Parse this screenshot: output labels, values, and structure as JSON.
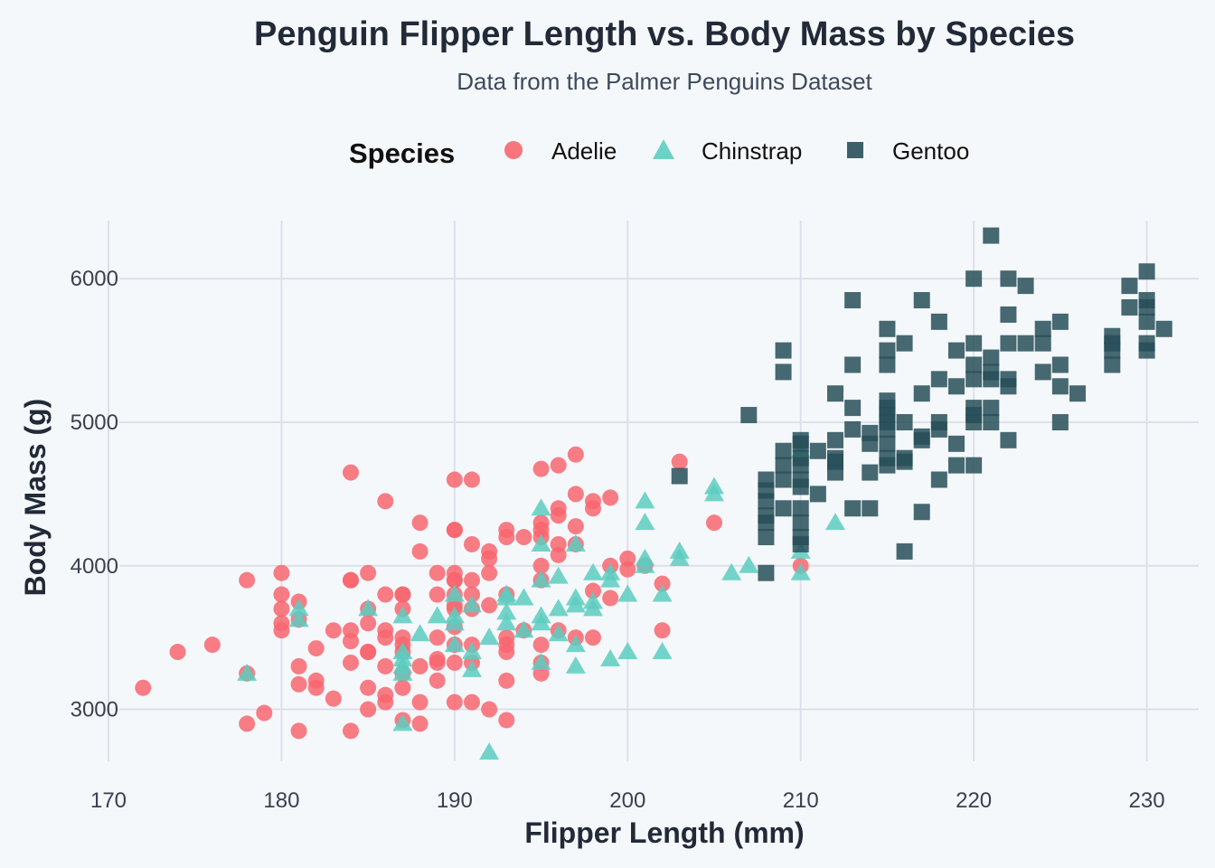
{
  "chart_data": {
    "type": "scatter",
    "title": "Penguin Flipper Length vs. Body Mass by Species",
    "subtitle": "Data from the Palmer Penguins Dataset",
    "xlabel": "Flipper Length (mm)",
    "ylabel": "Body Mass (g)",
    "xlim": [
      170,
      233
    ],
    "ylim": [
      2550,
      6480
    ],
    "xticks": [
      170,
      180,
      190,
      200,
      210,
      220,
      230
    ],
    "yticks": [
      3000,
      4000,
      5000,
      6000
    ],
    "grid": true,
    "legend": {
      "title": "Species",
      "placement": "top"
    },
    "series": [
      {
        "name": "Adelie",
        "marker": "circle",
        "color": "#f8666f",
        "points": [
          [
            172,
            3150
          ],
          [
            174,
            3400
          ],
          [
            176,
            3450
          ],
          [
            178,
            3900
          ],
          [
            178,
            3250
          ],
          [
            178,
            2900
          ],
          [
            179,
            2975
          ],
          [
            180,
            3950
          ],
          [
            180,
            3800
          ],
          [
            180,
            3700
          ],
          [
            180,
            3600
          ],
          [
            180,
            3550
          ],
          [
            181,
            3300
          ],
          [
            181,
            3175
          ],
          [
            181,
            2850
          ],
          [
            181,
            3750
          ],
          [
            181,
            3625
          ],
          [
            182,
            3200
          ],
          [
            182,
            3150
          ],
          [
            182,
            3425
          ],
          [
            183,
            3075
          ],
          [
            183,
            3550
          ],
          [
            184,
            4650
          ],
          [
            184,
            3900
          ],
          [
            184,
            3900
          ],
          [
            184,
            3550
          ],
          [
            184,
            3475
          ],
          [
            184,
            3325
          ],
          [
            184,
            2850
          ],
          [
            185,
            3950
          ],
          [
            185,
            3700
          ],
          [
            185,
            3600
          ],
          [
            185,
            3400
          ],
          [
            185,
            3400
          ],
          [
            185,
            3150
          ],
          [
            185,
            3000
          ],
          [
            186,
            4450
          ],
          [
            186,
            3800
          ],
          [
            186,
            3550
          ],
          [
            186,
            3500
          ],
          [
            186,
            3300
          ],
          [
            186,
            3100
          ],
          [
            186,
            3050
          ],
          [
            187,
            3800
          ],
          [
            187,
            3800
          ],
          [
            187,
            3700
          ],
          [
            187,
            3500
          ],
          [
            187,
            3450
          ],
          [
            187,
            3400
          ],
          [
            187,
            3250
          ],
          [
            187,
            3150
          ],
          [
            187,
            2925
          ],
          [
            188,
            4300
          ],
          [
            188,
            4100
          ],
          [
            188,
            3300
          ],
          [
            188,
            3050
          ],
          [
            188,
            2900
          ],
          [
            189,
            3950
          ],
          [
            189,
            3800
          ],
          [
            189,
            3500
          ],
          [
            189,
            3350
          ],
          [
            189,
            3325
          ],
          [
            189,
            3200
          ],
          [
            190,
            4600
          ],
          [
            190,
            4250
          ],
          [
            190,
            4250
          ],
          [
            190,
            3950
          ],
          [
            190,
            3900
          ],
          [
            190,
            3900
          ],
          [
            190,
            3800
          ],
          [
            190,
            3725
          ],
          [
            190,
            3700
          ],
          [
            190,
            3575
          ],
          [
            190,
            3450
          ],
          [
            190,
            3325
          ],
          [
            190,
            3050
          ],
          [
            191,
            4600
          ],
          [
            191,
            4150
          ],
          [
            191,
            3900
          ],
          [
            191,
            3800
          ],
          [
            191,
            3700
          ],
          [
            191,
            3450
          ],
          [
            191,
            3325
          ],
          [
            191,
            3050
          ],
          [
            192,
            4100
          ],
          [
            192,
            4050
          ],
          [
            192,
            3950
          ],
          [
            192,
            3725
          ],
          [
            192,
            3000
          ],
          [
            193,
            4250
          ],
          [
            193,
            4200
          ],
          [
            193,
            3800
          ],
          [
            193,
            3500
          ],
          [
            193,
            3450
          ],
          [
            193,
            3400
          ],
          [
            193,
            3200
          ],
          [
            193,
            2925
          ],
          [
            194,
            4200
          ],
          [
            194,
            3550
          ],
          [
            195,
            4675
          ],
          [
            195,
            4300
          ],
          [
            195,
            4250
          ],
          [
            195,
            4200
          ],
          [
            195,
            4000
          ],
          [
            195,
            3900
          ],
          [
            195,
            3450
          ],
          [
            195,
            3325
          ],
          [
            195,
            3250
          ],
          [
            196,
            4700
          ],
          [
            196,
            4400
          ],
          [
            196,
            4350
          ],
          [
            196,
            4150
          ],
          [
            196,
            4075
          ],
          [
            196,
            3550
          ],
          [
            197,
            4775
          ],
          [
            197,
            4500
          ],
          [
            197,
            4275
          ],
          [
            197,
            4150
          ],
          [
            197,
            3500
          ],
          [
            198,
            4450
          ],
          [
            198,
            4400
          ],
          [
            198,
            3825
          ],
          [
            198,
            3500
          ],
          [
            199,
            4475
          ],
          [
            199,
            4000
          ],
          [
            199,
            3775
          ],
          [
            200,
            4050
          ],
          [
            200,
            3975
          ],
          [
            201,
            4000
          ],
          [
            202,
            3875
          ],
          [
            202,
            3550
          ],
          [
            203,
            4725
          ],
          [
            205,
            4300
          ],
          [
            210,
            4000
          ]
        ]
      },
      {
        "name": "Chinstrap",
        "marker": "triangle",
        "color": "#5ccdc0",
        "points": [
          [
            178,
            3250
          ],
          [
            181,
            3700
          ],
          [
            181,
            3625
          ],
          [
            185,
            3700
          ],
          [
            187,
            3650
          ],
          [
            187,
            3400
          ],
          [
            187,
            3350
          ],
          [
            187,
            3300
          ],
          [
            187,
            3250
          ],
          [
            187,
            2900
          ],
          [
            188,
            3525
          ],
          [
            189,
            3650
          ],
          [
            190,
            3800
          ],
          [
            190,
            3650
          ],
          [
            190,
            3600
          ],
          [
            190,
            3450
          ],
          [
            191,
            3725
          ],
          [
            191,
            3400
          ],
          [
            191,
            3275
          ],
          [
            192,
            3500
          ],
          [
            192,
            2700
          ],
          [
            193,
            3800
          ],
          [
            193,
            3775
          ],
          [
            193,
            3675
          ],
          [
            193,
            3600
          ],
          [
            194,
            3775
          ],
          [
            194,
            3550
          ],
          [
            195,
            4400
          ],
          [
            195,
            4150
          ],
          [
            195,
            3900
          ],
          [
            195,
            3650
          ],
          [
            195,
            3600
          ],
          [
            195,
            3325
          ],
          [
            196,
            3925
          ],
          [
            196,
            3700
          ],
          [
            196,
            3525
          ],
          [
            197,
            4150
          ],
          [
            197,
            3775
          ],
          [
            197,
            3725
          ],
          [
            197,
            3450
          ],
          [
            197,
            3300
          ],
          [
            198,
            3950
          ],
          [
            198,
            3750
          ],
          [
            198,
            3700
          ],
          [
            199,
            3950
          ],
          [
            199,
            3900
          ],
          [
            199,
            3350
          ],
          [
            200,
            3800
          ],
          [
            200,
            3400
          ],
          [
            201,
            4450
          ],
          [
            201,
            4300
          ],
          [
            201,
            4050
          ],
          [
            201,
            4000
          ],
          [
            202,
            3800
          ],
          [
            202,
            3400
          ],
          [
            203,
            4100
          ],
          [
            203,
            4050
          ],
          [
            205,
            4550
          ],
          [
            205,
            4500
          ],
          [
            206,
            3950
          ],
          [
            207,
            4000
          ],
          [
            210,
            4800
          ],
          [
            210,
            4100
          ],
          [
            210,
            3950
          ],
          [
            212,
            4300
          ]
        ]
      },
      {
        "name": "Gentoo",
        "marker": "square",
        "color": "#274f58",
        "points": [
          [
            203,
            4625
          ],
          [
            207,
            5050
          ],
          [
            208,
            4600
          ],
          [
            208,
            4525
          ],
          [
            208,
            4450
          ],
          [
            208,
            4350
          ],
          [
            208,
            4300
          ],
          [
            208,
            4200
          ],
          [
            208,
            3950
          ],
          [
            209,
            5500
          ],
          [
            209,
            4800
          ],
          [
            209,
            4700
          ],
          [
            209,
            4600
          ],
          [
            209,
            4400
          ],
          [
            209,
            5350
          ],
          [
            210,
            4875
          ],
          [
            210,
            4850
          ],
          [
            210,
            4750
          ],
          [
            210,
            4700
          ],
          [
            210,
            4600
          ],
          [
            210,
            4550
          ],
          [
            210,
            4400
          ],
          [
            210,
            4300
          ],
          [
            210,
            4200
          ],
          [
            210,
            4150
          ],
          [
            211,
            4800
          ],
          [
            211,
            4500
          ],
          [
            212,
            5200
          ],
          [
            212,
            4875
          ],
          [
            212,
            4750
          ],
          [
            212,
            4725
          ],
          [
            212,
            4650
          ],
          [
            213,
            5850
          ],
          [
            213,
            5400
          ],
          [
            213,
            5100
          ],
          [
            213,
            4950
          ],
          [
            213,
            4400
          ],
          [
            214,
            4925
          ],
          [
            214,
            4850
          ],
          [
            214,
            4650
          ],
          [
            214,
            4400
          ],
          [
            215,
            5650
          ],
          [
            215,
            5500
          ],
          [
            215,
            5400
          ],
          [
            215,
            5150
          ],
          [
            215,
            5100
          ],
          [
            215,
            5050
          ],
          [
            215,
            5000
          ],
          [
            215,
            4950
          ],
          [
            215,
            4850
          ],
          [
            215,
            4750
          ],
          [
            215,
            4700
          ],
          [
            216,
            5550
          ],
          [
            216,
            5000
          ],
          [
            216,
            4750
          ],
          [
            216,
            4725
          ],
          [
            216,
            4100
          ],
          [
            217,
            5850
          ],
          [
            217,
            5200
          ],
          [
            217,
            4900
          ],
          [
            217,
            4875
          ],
          [
            217,
            4375
          ],
          [
            218,
            5700
          ],
          [
            218,
            5300
          ],
          [
            218,
            5000
          ],
          [
            218,
            4950
          ],
          [
            218,
            4600
          ],
          [
            219,
            5500
          ],
          [
            219,
            5250
          ],
          [
            219,
            4850
          ],
          [
            219,
            4700
          ],
          [
            220,
            6000
          ],
          [
            220,
            5550
          ],
          [
            220,
            5400
          ],
          [
            220,
            5300
          ],
          [
            220,
            5100
          ],
          [
            220,
            5050
          ],
          [
            220,
            5000
          ],
          [
            220,
            4700
          ],
          [
            221,
            6300
          ],
          [
            221,
            5450
          ],
          [
            221,
            5350
          ],
          [
            221,
            5300
          ],
          [
            221,
            5100
          ],
          [
            221,
            5000
          ],
          [
            222,
            6000
          ],
          [
            222,
            5750
          ],
          [
            222,
            5550
          ],
          [
            222,
            5300
          ],
          [
            222,
            5250
          ],
          [
            222,
            4875
          ],
          [
            223,
            5950
          ],
          [
            223,
            5550
          ],
          [
            224,
            5650
          ],
          [
            224,
            5550
          ],
          [
            224,
            5350
          ],
          [
            225,
            5700
          ],
          [
            225,
            5400
          ],
          [
            225,
            5250
          ],
          [
            225,
            5000
          ],
          [
            226,
            5200
          ],
          [
            228,
            5600
          ],
          [
            228,
            5550
          ],
          [
            228,
            5500
          ],
          [
            228,
            5400
          ],
          [
            229,
            5950
          ],
          [
            229,
            5800
          ],
          [
            230,
            6050
          ],
          [
            230,
            5850
          ],
          [
            230,
            5800
          ],
          [
            230,
            5700
          ],
          [
            230,
            5550
          ],
          [
            230,
            5500
          ],
          [
            231,
            5650
          ]
        ]
      }
    ]
  }
}
